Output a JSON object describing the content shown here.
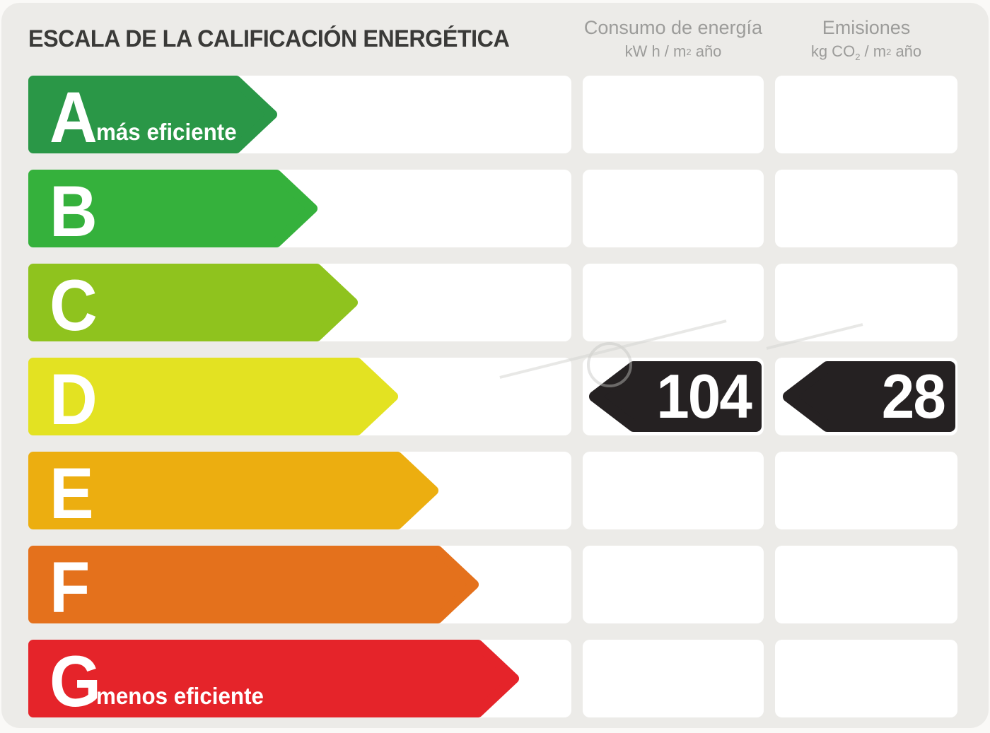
{
  "title": "ESCALA DE LA CALIFICACIÓN ENERGÉTICA",
  "columns": {
    "consumption": {
      "label": "Consumo de energía",
      "unit": {
        "pre": "kW h / m",
        "sup": "2",
        "post": " año"
      }
    },
    "emissions": {
      "label": "Emisiones",
      "unit": {
        "pre": "kg CO",
        "sub": "2",
        "mid": " / m",
        "sup": "2",
        "post": " año"
      }
    }
  },
  "scale": {
    "rows": [
      {
        "grade": "A",
        "note": "más eficiente",
        "color": "#2a9747",
        "arrow_width": 352
      },
      {
        "grade": "B",
        "color": "#35b13c",
        "arrow_width": 409
      },
      {
        "grade": "C",
        "color": "#8fc31e",
        "arrow_width": 466
      },
      {
        "grade": "D",
        "color": "#e3e222",
        "arrow_width": 523
      },
      {
        "grade": "E",
        "color": "#ecae10",
        "arrow_width": 580
      },
      {
        "grade": "F",
        "color": "#e4711c",
        "arrow_width": 637
      },
      {
        "grade": "G",
        "note": "menos eficiente",
        "color": "#e5242a",
        "arrow_width": 694
      }
    ]
  },
  "result": {
    "grade": "D",
    "consumption_value": "104",
    "emissions_value": "28",
    "tag_color": "#252122",
    "text_color": "#ffffff"
  },
  "colors": {
    "panel_bg": "#ecebe8",
    "row_bg": "#ffffff",
    "title_text": "#3a3a38",
    "header_text": "#9c9c9a"
  },
  "chart_data": {
    "type": "bar",
    "title": "ESCALA DE LA CALIFICACIÓN ENERGÉTICA",
    "categories": [
      "A",
      "B",
      "C",
      "D",
      "E",
      "F",
      "G"
    ],
    "series": [
      {
        "name": "Consumo de energía (kW h / m² año)",
        "values": [
          null,
          null,
          null,
          104,
          null,
          null,
          null
        ]
      },
      {
        "name": "Emisiones (kg CO₂ / m² año)",
        "values": [
          null,
          null,
          null,
          28,
          null,
          null,
          null
        ]
      }
    ],
    "annotations": [
      "A = más eficiente",
      "G = menos eficiente"
    ],
    "rating": "D"
  }
}
